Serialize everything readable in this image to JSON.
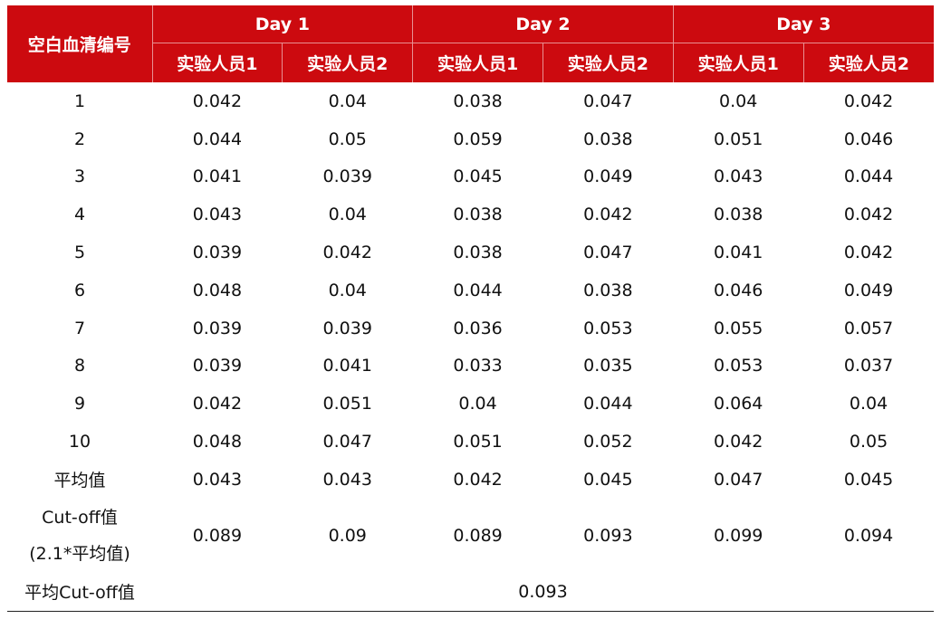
{
  "header": {
    "first_col": "空白血清编号",
    "days": [
      "Day 1",
      "Day 2",
      "Day 3"
    ],
    "persons": [
      "实验人员1",
      "实验人员2",
      "实验人员1",
      "实验人员2",
      "实验人员1",
      "实验人员2"
    ]
  },
  "rows": [
    {
      "id": "1",
      "values": [
        "0.042",
        "0.04",
        "0.038",
        "0.047",
        "0.04",
        "0.042"
      ]
    },
    {
      "id": "2",
      "values": [
        "0.044",
        "0.05",
        "0.059",
        "0.038",
        "0.051",
        "0.046"
      ]
    },
    {
      "id": "3",
      "values": [
        "0.041",
        "0.039",
        "0.045",
        "0.049",
        "0.043",
        "0.044"
      ]
    },
    {
      "id": "4",
      "values": [
        "0.043",
        "0.04",
        "0.038",
        "0.042",
        "0.038",
        "0.042"
      ]
    },
    {
      "id": "5",
      "values": [
        "0.039",
        "0.042",
        "0.038",
        "0.047",
        "0.041",
        "0.042"
      ]
    },
    {
      "id": "6",
      "values": [
        "0.048",
        "0.04",
        "0.044",
        "0.038",
        "0.046",
        "0.049"
      ]
    },
    {
      "id": "7",
      "values": [
        "0.039",
        "0.039",
        "0.036",
        "0.053",
        "0.055",
        "0.057"
      ]
    },
    {
      "id": "8",
      "values": [
        "0.039",
        "0.041",
        "0.033",
        "0.035",
        "0.053",
        "0.037"
      ]
    },
    {
      "id": "9",
      "values": [
        "0.042",
        "0.051",
        "0.04",
        "0.044",
        "0.064",
        "0.04"
      ]
    },
    {
      "id": "10",
      "values": [
        "0.048",
        "0.047",
        "0.051",
        "0.052",
        "0.042",
        "0.05"
      ]
    }
  ],
  "average": {
    "label": "平均值",
    "values": [
      "0.043",
      "0.043",
      "0.042",
      "0.045",
      "0.047",
      "0.045"
    ]
  },
  "cutoff": {
    "label_line1": "Cut-off值",
    "label_line2": "(2.1*平均值)",
    "values": [
      "0.089",
      "0.09",
      "0.089",
      "0.093",
      "0.099",
      "0.094"
    ]
  },
  "avg_cutoff": {
    "label": "平均Cut-off值",
    "value": "0.093"
  },
  "colors": {
    "header_bg": "#cc0a0f",
    "header_text": "#ffffff",
    "body_text": "#111111"
  }
}
